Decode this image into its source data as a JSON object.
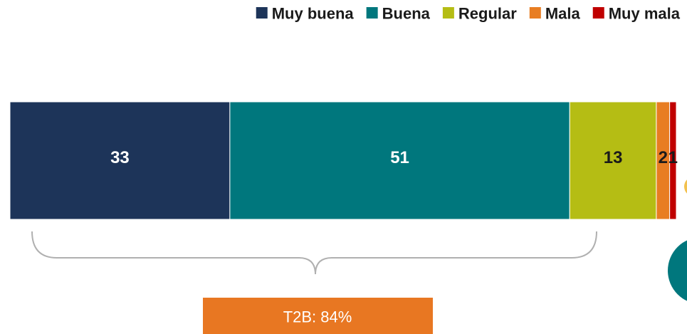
{
  "chart_data": {
    "type": "stacked-bar",
    "categories": [
      null
    ],
    "series": [
      {
        "name": "Muy buena",
        "color": "#1d3459",
        "values": [
          33
        ]
      },
      {
        "name": "Buena",
        "color": "#00777d",
        "values": [
          51
        ]
      },
      {
        "name": "Regular",
        "color": "#b5bd14",
        "values": [
          13
        ]
      },
      {
        "name": "Mala",
        "color": "#e87d22",
        "values": [
          2
        ]
      },
      {
        "name": "Muy mala",
        "color": "#c00000",
        "values": [
          1
        ]
      }
    ],
    "xlim": [
      0,
      100
    ],
    "legend": "top",
    "annotation": "T2B: 84%",
    "annotation_color": "#e87722"
  }
}
